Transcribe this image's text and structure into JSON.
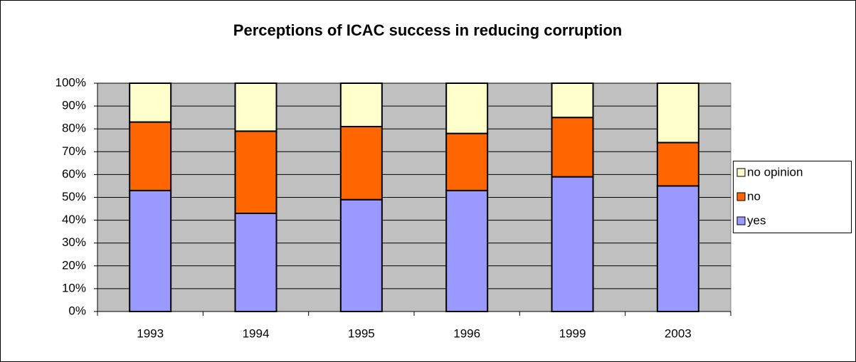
{
  "chart_data": {
    "type": "stacked_bar",
    "title": "Perceptions of ICAC success in reducing corruption",
    "categories": [
      "1993",
      "1994",
      "1995",
      "1996",
      "1999",
      "2003"
    ],
    "series": [
      {
        "name": "yes",
        "color": "#9999ff",
        "values": [
          53,
          43,
          49,
          53,
          59,
          55
        ]
      },
      {
        "name": "no",
        "color": "#ff6600",
        "values": [
          30,
          36,
          32,
          25,
          26,
          19
        ]
      },
      {
        "name": "no opinion",
        "color": "#ffffcc",
        "values": [
          17,
          21,
          19,
          22,
          15,
          26
        ]
      }
    ],
    "ylim": [
      0,
      100
    ],
    "yticks": [
      {
        "value": 0,
        "label": "0%"
      },
      {
        "value": 10,
        "label": "10%"
      },
      {
        "value": 20,
        "label": "20%"
      },
      {
        "value": 30,
        "label": "30%"
      },
      {
        "value": 40,
        "label": "40%"
      },
      {
        "value": 50,
        "label": "50%"
      },
      {
        "value": 60,
        "label": "60%"
      },
      {
        "value": 70,
        "label": "70%"
      },
      {
        "value": 80,
        "label": "80%"
      },
      {
        "value": 90,
        "label": "90%"
      },
      {
        "value": 100,
        "label": "100%"
      }
    ],
    "grid": true,
    "legend": "right"
  }
}
